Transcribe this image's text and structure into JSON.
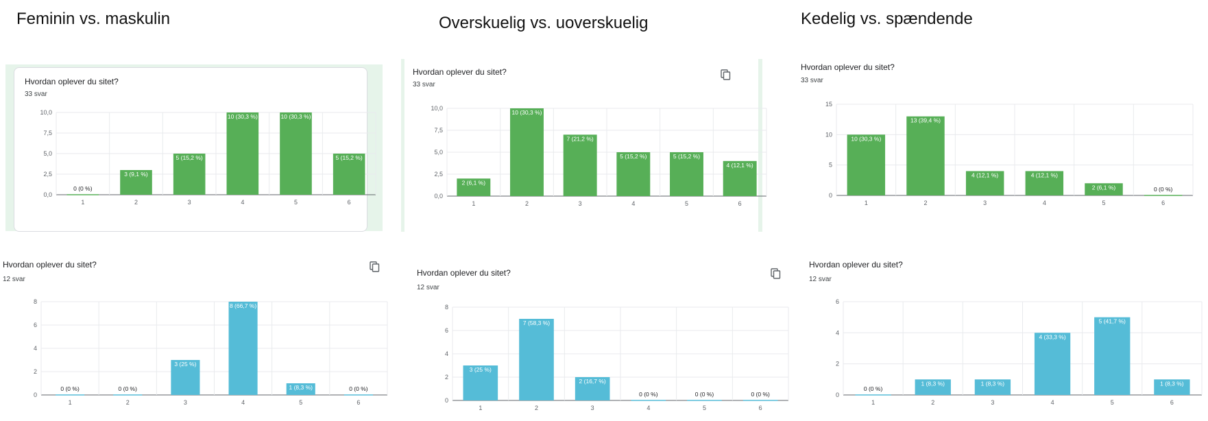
{
  "column_titles": [
    "Feminin vs. maskulin",
    "Overskuelig vs. uoverskuelig",
    "Kedelig vs. spændende"
  ],
  "colors": {
    "green": "#57af57",
    "blue": "#55bcd7",
    "card_bg": "#e6f4ea"
  },
  "chart_data": [
    {
      "type": "bar",
      "title": "Hvordan oplever du sitet?",
      "subtitle": "33 svar",
      "categories": [
        "1",
        "2",
        "3",
        "4",
        "5",
        "6"
      ],
      "values": [
        0,
        3,
        5,
        10,
        10,
        5
      ],
      "labels": [
        "0 (0 %)",
        "3 (9,1 %)",
        "5 (15,2 %)",
        "10 (30,3 %)",
        "10 (30,3 %)",
        "5 (15,2 %)"
      ],
      "ylim": [
        0,
        10
      ],
      "yticks": [
        "0,0",
        "2,5",
        "5,0",
        "7,5",
        "10,0"
      ],
      "ytick_values": [
        0,
        2.5,
        5,
        7.5,
        10
      ],
      "color": "#57af57",
      "copy_icon": false
    },
    {
      "type": "bar",
      "title": "Hvordan oplever du sitet?",
      "subtitle": "33 svar",
      "categories": [
        "1",
        "2",
        "3",
        "4",
        "5",
        "6"
      ],
      "values": [
        2,
        10,
        7,
        5,
        5,
        4
      ],
      "labels": [
        "2 (6,1 %)",
        "10 (30,3 %)",
        "7 (21,2 %)",
        "5 (15,2 %)",
        "5 (15,2 %)",
        "4 (12,1 %)"
      ],
      "ylim": [
        0,
        10
      ],
      "yticks": [
        "0,0",
        "2,5",
        "5,0",
        "7,5",
        "10,0"
      ],
      "ytick_values": [
        0,
        2.5,
        5,
        7.5,
        10
      ],
      "color": "#57af57",
      "copy_icon": true
    },
    {
      "type": "bar",
      "title": "Hvordan oplever du sitet?",
      "subtitle": "33 svar",
      "categories": [
        "1",
        "2",
        "3",
        "4",
        "5",
        "6"
      ],
      "values": [
        10,
        13,
        4,
        4,
        2,
        0
      ],
      "labels": [
        "10 (30,3 %)",
        "13 (39,4 %)",
        "4 (12,1 %)",
        "4 (12,1 %)",
        "2 (6,1 %)",
        "0 (0 %)"
      ],
      "ylim": [
        0,
        15
      ],
      "yticks": [
        "0",
        "5",
        "10",
        "15"
      ],
      "ytick_values": [
        0,
        5,
        10,
        15
      ],
      "color": "#57af57",
      "copy_icon": false
    },
    {
      "type": "bar",
      "title": "Hvordan oplever du sitet?",
      "subtitle": "12 svar",
      "categories": [
        "1",
        "2",
        "3",
        "4",
        "5",
        "6"
      ],
      "values": [
        0,
        0,
        3,
        8,
        1,
        0
      ],
      "labels": [
        "0 (0 %)",
        "0 (0 %)",
        "3 (25 %)",
        "8 (66,7 %)",
        "1 (8,3 %)",
        "0 (0 %)"
      ],
      "ylim": [
        0,
        8
      ],
      "yticks": [
        "0",
        "2",
        "4",
        "6",
        "8"
      ],
      "ytick_values": [
        0,
        2,
        4,
        6,
        8
      ],
      "color": "#55bcd7",
      "copy_icon": true
    },
    {
      "type": "bar",
      "title": "Hvordan oplever du sitet?",
      "subtitle": "12 svar",
      "categories": [
        "1",
        "2",
        "3",
        "4",
        "5",
        "6"
      ],
      "values": [
        3,
        7,
        2,
        0,
        0,
        0
      ],
      "labels": [
        "3 (25 %)",
        "7 (58,3 %)",
        "2 (16,7 %)",
        "0 (0 %)",
        "0 (0 %)",
        "0 (0 %)"
      ],
      "ylim": [
        0,
        8
      ],
      "yticks": [
        "0",
        "2",
        "4",
        "6",
        "8"
      ],
      "ytick_values": [
        0,
        2,
        4,
        6,
        8
      ],
      "color": "#55bcd7",
      "copy_icon": true
    },
    {
      "type": "bar",
      "title": "Hvordan oplever du sitet?",
      "subtitle": "12 svar",
      "categories": [
        "1",
        "2",
        "3",
        "4",
        "5",
        "6"
      ],
      "values": [
        0,
        1,
        1,
        4,
        5,
        1
      ],
      "labels": [
        "0 (0 %)",
        "1 (8,3 %)",
        "1 (8,3 %)",
        "4 (33,3 %)",
        "5 (41,7 %)",
        "1 (8,3 %)"
      ],
      "ylim": [
        0,
        6
      ],
      "yticks": [
        "0",
        "2",
        "4",
        "6"
      ],
      "ytick_values": [
        0,
        2,
        4,
        6
      ],
      "color": "#55bcd7",
      "copy_icon": false
    }
  ]
}
